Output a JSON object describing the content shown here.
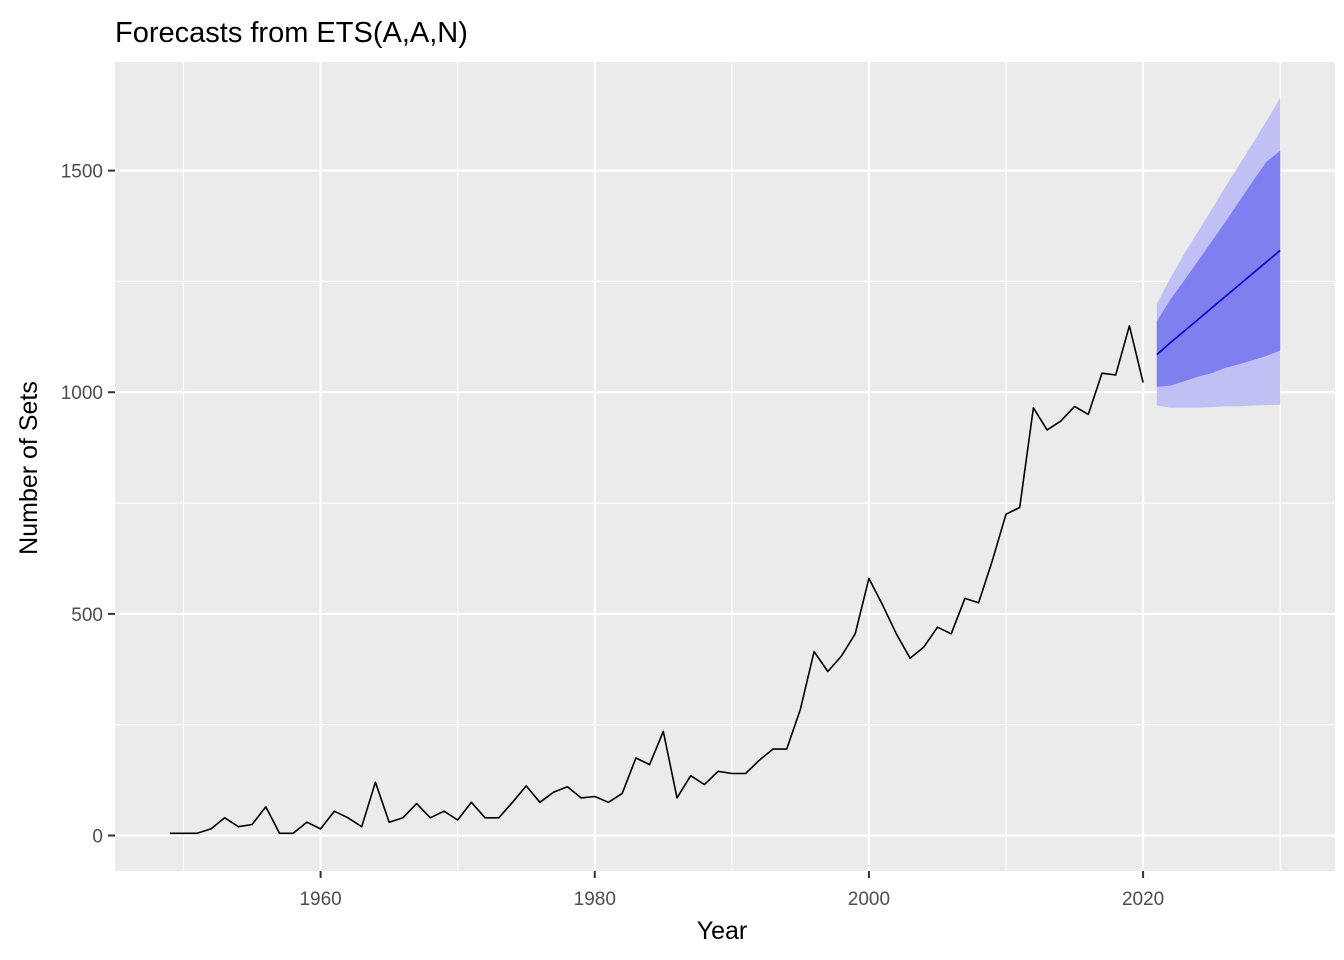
{
  "chart_data": {
    "type": "line",
    "title": "Forecasts from ETS(A,A,N)",
    "xlabel": "Year",
    "ylabel": "Number of Sets",
    "xlim": [
      1945,
      2034
    ],
    "ylim": [
      -80,
      1745
    ],
    "x_ticks": [
      1960,
      1980,
      2000,
      2020
    ],
    "x_tick_labels": [
      "1960",
      "1980",
      "2000",
      "2020"
    ],
    "y_ticks": [
      0,
      500,
      1000,
      1500
    ],
    "y_tick_labels": [
      "0",
      "500",
      "1000",
      "1500"
    ],
    "grid": true,
    "legend": "none",
    "colors": {
      "panel": "#EBEBEB",
      "grid": "#FFFFFF",
      "observed": "#000000",
      "forecast": "#0000CC",
      "band80": "#7F7FEF",
      "band95": "#C0C0F5",
      "tick": "#333333"
    },
    "series": [
      {
        "name": "",
        "role": "observed",
        "x": [
          1949,
          1950,
          1951,
          1952,
          1953,
          1954,
          1955,
          1956,
          1957,
          1958,
          1959,
          1960,
          1961,
          1962,
          1963,
          1964,
          1965,
          1966,
          1967,
          1968,
          1969,
          1970,
          1971,
          1972,
          1973,
          1974,
          1975,
          1976,
          1977,
          1978,
          1979,
          1980,
          1981,
          1982,
          1983,
          1984,
          1985,
          1986,
          1987,
          1988,
          1989,
          1990,
          1991,
          1992,
          1993,
          1994,
          1995,
          1996,
          1997,
          1998,
          1999,
          2000,
          2001,
          2002,
          2003,
          2004,
          2005,
          2006,
          2007,
          2008,
          2009,
          2010,
          2011,
          2012,
          2013,
          2014,
          2015,
          2016,
          2017,
          2018,
          2019,
          2020
        ],
        "values": [
          5,
          5,
          5,
          15,
          40,
          20,
          25,
          65,
          5,
          5,
          30,
          15,
          55,
          40,
          20,
          120,
          30,
          40,
          72,
          40,
          55,
          35,
          75,
          40,
          40,
          75,
          112,
          75,
          98,
          110,
          85,
          88,
          75,
          95,
          175,
          160,
          235,
          85,
          135,
          115,
          145,
          140,
          140,
          170,
          195,
          195,
          285,
          415,
          370,
          405,
          455,
          580,
          520,
          455,
          400,
          425,
          470,
          455,
          535,
          525,
          620,
          725,
          740,
          965,
          915,
          935,
          968,
          950,
          1043,
          1039,
          1150,
          1022
        ]
      },
      {
        "name": "",
        "role": "forecast",
        "x": [
          2021,
          2022,
          2023,
          2024,
          2025,
          2026,
          2027,
          2028,
          2029,
          2030
        ],
        "values": [
          1085,
          1112,
          1138,
          1164,
          1190,
          1216,
          1242,
          1268,
          1294,
          1320
        ],
        "lower80": [
          1012,
          1015,
          1025,
          1035,
          1043,
          1055,
          1063,
          1072,
          1082,
          1094
        ],
        "upper80": [
          1160,
          1210,
          1252,
          1296,
          1340,
          1384,
          1430,
          1476,
          1520,
          1545
        ],
        "lower95": [
          970,
          965,
          965,
          965,
          966,
          968,
          968,
          970,
          971,
          972
        ],
        "upper95": [
          1200,
          1258,
          1312,
          1362,
          1412,
          1463,
          1512,
          1562,
          1612,
          1665
        ]
      }
    ]
  }
}
